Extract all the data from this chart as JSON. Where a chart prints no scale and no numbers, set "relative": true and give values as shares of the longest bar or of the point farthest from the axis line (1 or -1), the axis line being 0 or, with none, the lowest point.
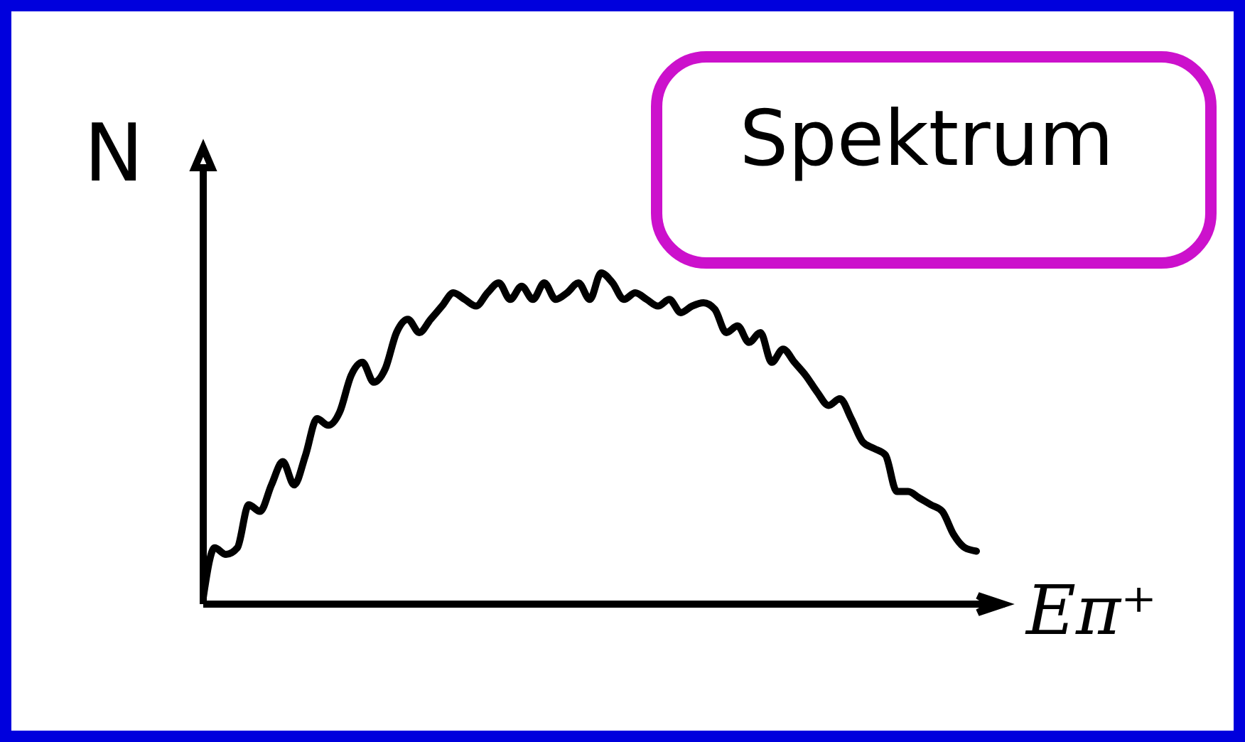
{
  "chart_data": {
    "type": "line",
    "title": "Spektrum",
    "xlabel": "Eπ⁺",
    "ylabel": "N",
    "relative": true,
    "color": "#000000",
    "categories": [
      null,
      null,
      null,
      null,
      null,
      null,
      null,
      null,
      null,
      null,
      null,
      null,
      null,
      null,
      null,
      null,
      null,
      null,
      null,
      null,
      null,
      null,
      null,
      null,
      null,
      null,
      null,
      null,
      null,
      null,
      null,
      null,
      null,
      null,
      null,
      null,
      null,
      null,
      null,
      null,
      null,
      null,
      null,
      null,
      null,
      null,
      null,
      null,
      null,
      null,
      null,
      null,
      null,
      null,
      null,
      null,
      null,
      null,
      null,
      null,
      null,
      null,
      null,
      null,
      null,
      null,
      null,
      null,
      null
    ],
    "values": [
      0.02,
      0.17,
      0.15,
      0.17,
      0.3,
      0.28,
      0.36,
      0.43,
      0.36,
      0.45,
      0.56,
      0.54,
      0.58,
      0.69,
      0.73,
      0.67,
      0.71,
      0.82,
      0.86,
      0.82,
      0.86,
      0.9,
      0.94,
      0.92,
      0.9,
      0.94,
      0.97,
      0.92,
      0.96,
      0.92,
      0.97,
      0.92,
      0.94,
      0.97,
      0.92,
      1.0,
      0.97,
      0.92,
      0.94,
      0.92,
      0.9,
      0.92,
      0.88,
      0.9,
      0.91,
      0.89,
      0.82,
      0.84,
      0.79,
      0.82,
      0.73,
      0.77,
      0.73,
      0.69,
      0.64,
      0.6,
      0.62,
      0.56,
      0.49,
      0.47,
      0.45,
      0.34,
      0.34,
      0.32,
      0.3,
      0.28,
      0.21,
      0.17,
      0.16
    ]
  }
}
